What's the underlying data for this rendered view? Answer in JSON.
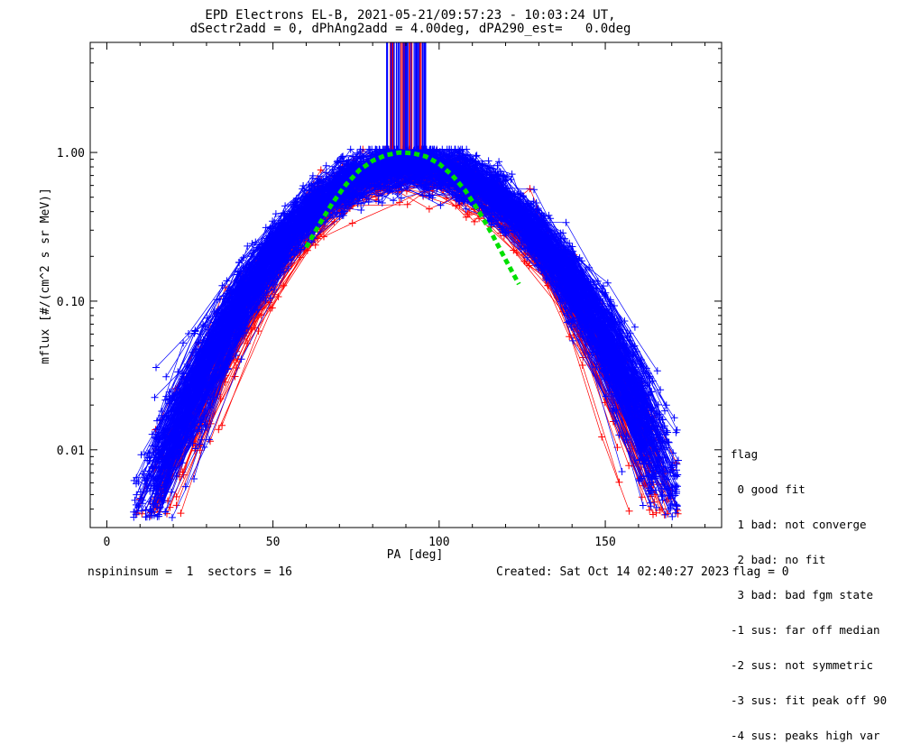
{
  "header": {
    "title_line1": "EPD Electrons EL-B, 2021-05-21/09:57:23 - 10:03:24 UT,",
    "title_line2": "dSectr2add = 0, dPhAng2add = 4.00deg, dPA290_est=   0.0deg"
  },
  "footer": {
    "left": "nspininsum =  1  sectors = 16",
    "created": "Created: Sat Oct 14 02:40:27 2023",
    "flag": "flag = 0"
  },
  "legend": {
    "title": "flag",
    "items": [
      " 0 good fit",
      " 1 bad: not converge",
      " 2 bad: no fit",
      " 3 bad: bad fgm state",
      "-1 sus: far off median",
      "-2 sus: not symmetric",
      "-3 sus: fit peak off 90",
      "-4 sus: peaks high var"
    ]
  },
  "colors": {
    "series_blue": "#0000ff",
    "series_red": "#ff0000",
    "fit_green": "#00e000",
    "axes": "#000000"
  },
  "chart_data": {
    "type": "line",
    "xlabel": "PA [deg]",
    "ylabel": "mflux [#/(cm^2 s sr MeV)]",
    "xlim": [
      -5,
      185
    ],
    "ylim": [
      0.003,
      5.5
    ],
    "yscale": "log",
    "x_ticks": [
      0,
      50,
      100,
      150
    ],
    "x_tick_labels": [
      "0",
      "50",
      "100",
      "150"
    ],
    "y_ticks": [
      0.01,
      0.1,
      1.0
    ],
    "y_tick_labels": [
      "0.01",
      "0.10",
      "1.00"
    ],
    "series": [
      {
        "name": "flag 0 (good fit)",
        "color": "blue",
        "count": 260,
        "profile": {
          "peak_pa": 92,
          "peak_flux": 0.85,
          "width_deg": 26
        }
      },
      {
        "name": "flag -1 (far off median)",
        "color": "red",
        "count": 80,
        "profile": {
          "peak_pa": 92,
          "peak_flux": 0.75,
          "width_deg": 25
        }
      },
      {
        "name": "median fit",
        "color": "green",
        "style": "dashed",
        "x": [
          60,
          64,
          68,
          72,
          76,
          80,
          84,
          88,
          92,
          96,
          100,
          104,
          108,
          112,
          116,
          120,
          124
        ],
        "y": [
          0.23,
          0.33,
          0.46,
          0.61,
          0.76,
          0.88,
          0.96,
          1.0,
          0.99,
          0.94,
          0.84,
          0.7,
          0.55,
          0.4,
          0.28,
          0.19,
          0.13
        ]
      }
    ],
    "saturated_band": {
      "pa_range": [
        84,
        96
      ],
      "flux_from": 1.05,
      "flux_to": 5.5
    }
  }
}
